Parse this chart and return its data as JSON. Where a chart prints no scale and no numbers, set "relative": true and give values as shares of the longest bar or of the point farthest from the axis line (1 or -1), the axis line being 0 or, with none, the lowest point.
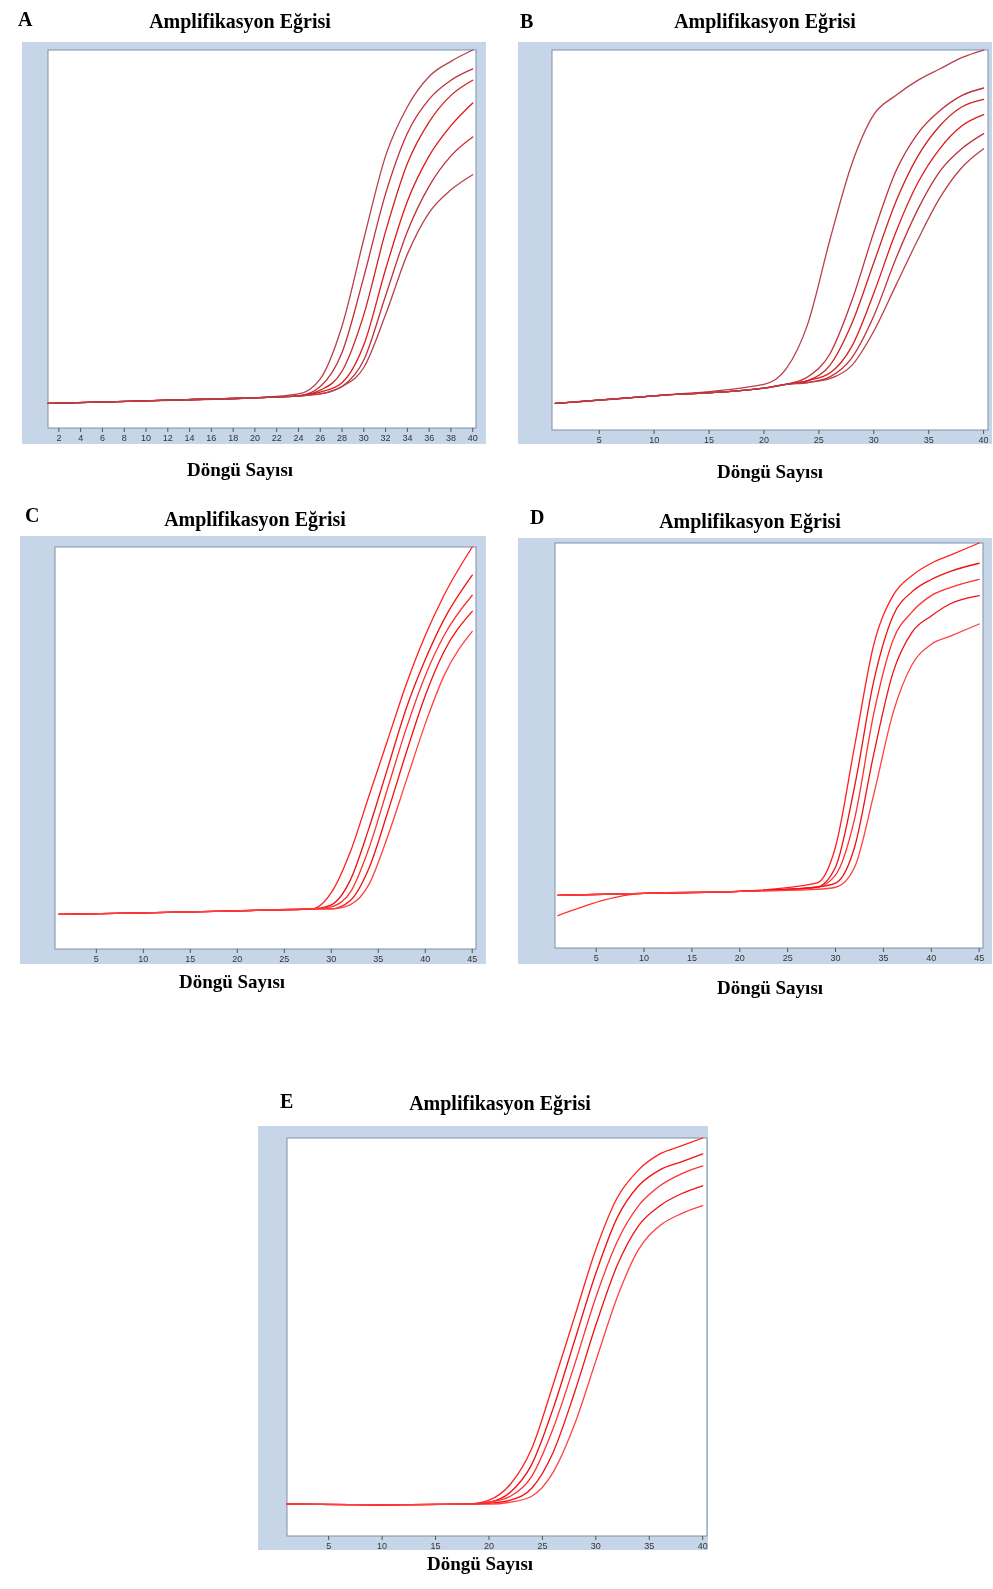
{
  "chart_data": [
    {
      "type": "line",
      "title": "Amplifikasyon Eğrisi",
      "xlabel": "Döngü Sayısı",
      "annotations": [
        "A"
      ],
      "relative": true,
      "xlim": [
        1,
        40.3
      ],
      "xticks": [
        2,
        4,
        6,
        8,
        10,
        12,
        14,
        16,
        18,
        20,
        22,
        24,
        26,
        28,
        30,
        32,
        34,
        36,
        38,
        40
      ],
      "grid": false,
      "x": [
        1,
        10,
        20,
        24,
        26,
        28,
        30,
        32,
        34,
        36,
        38,
        40
      ],
      "series": [
        {
          "color": "#b8404a",
          "values": [
            0.065,
            0.072,
            0.08,
            0.09,
            0.13,
            0.27,
            0.5,
            0.72,
            0.85,
            0.93,
            0.97,
            1.0
          ]
        },
        {
          "color": "#c0303a",
          "values": [
            0.065,
            0.072,
            0.08,
            0.085,
            0.11,
            0.2,
            0.4,
            0.62,
            0.78,
            0.87,
            0.92,
            0.95
          ]
        },
        {
          "color": "#d02020",
          "values": [
            0.065,
            0.072,
            0.08,
            0.085,
            0.1,
            0.15,
            0.3,
            0.52,
            0.7,
            0.81,
            0.88,
            0.92
          ]
        },
        {
          "color": "#e01818",
          "values": [
            0.065,
            0.072,
            0.08,
            0.085,
            0.095,
            0.12,
            0.22,
            0.42,
            0.6,
            0.72,
            0.8,
            0.86
          ]
        },
        {
          "color": "#c0303a",
          "values": [
            0.065,
            0.072,
            0.08,
            0.085,
            0.09,
            0.11,
            0.18,
            0.35,
            0.52,
            0.64,
            0.72,
            0.77
          ]
        },
        {
          "color": "#b8404a",
          "values": [
            0.065,
            0.072,
            0.08,
            0.085,
            0.09,
            0.11,
            0.16,
            0.3,
            0.46,
            0.57,
            0.63,
            0.67
          ]
        }
      ]
    },
    {
      "type": "line",
      "title": "Amplifikasyon Eğrisi",
      "xlabel": "Döngü Sayısı",
      "annotations": [
        "B"
      ],
      "relative": true,
      "xlim": [
        0.7,
        40.4
      ],
      "xticks": [
        5,
        10,
        15,
        20,
        25,
        30,
        35,
        40
      ],
      "grid": false,
      "x": [
        1,
        10,
        20,
        22,
        24,
        26,
        28,
        30,
        32,
        34,
        36,
        38,
        40
      ],
      "series": [
        {
          "color": "#b8404a",
          "values": [
            0.07,
            0.09,
            0.12,
            0.16,
            0.28,
            0.5,
            0.7,
            0.83,
            0.88,
            0.92,
            0.95,
            0.98,
            1.0
          ]
        },
        {
          "color": "#c0303a",
          "values": [
            0.07,
            0.09,
            0.11,
            0.12,
            0.14,
            0.2,
            0.34,
            0.52,
            0.68,
            0.78,
            0.84,
            0.88,
            0.9
          ]
        },
        {
          "color": "#d02020",
          "values": [
            0.07,
            0.09,
            0.11,
            0.12,
            0.13,
            0.17,
            0.28,
            0.44,
            0.6,
            0.72,
            0.8,
            0.85,
            0.87
          ]
        },
        {
          "color": "#e01818",
          "values": [
            0.07,
            0.09,
            0.11,
            0.12,
            0.13,
            0.15,
            0.22,
            0.36,
            0.52,
            0.65,
            0.74,
            0.8,
            0.83
          ]
        },
        {
          "color": "#c0303a",
          "values": [
            0.07,
            0.09,
            0.11,
            0.12,
            0.125,
            0.14,
            0.19,
            0.3,
            0.45,
            0.58,
            0.68,
            0.74,
            0.78
          ]
        },
        {
          "color": "#b8404a",
          "values": [
            0.07,
            0.09,
            0.11,
            0.12,
            0.125,
            0.135,
            0.17,
            0.26,
            0.38,
            0.5,
            0.61,
            0.69,
            0.74
          ]
        }
      ]
    },
    {
      "type": "line",
      "title": "Amplifikasyon Eğrisi",
      "xlabel": "Döngü Sayısı",
      "annotations": [
        "C"
      ],
      "relative": true,
      "xlim": [
        0.6,
        45.4
      ],
      "xticks": [
        5,
        10,
        15,
        20,
        25,
        30,
        35,
        40,
        45
      ],
      "grid": false,
      "x": [
        1,
        10,
        20,
        28,
        30,
        32,
        34,
        36,
        38,
        40,
        42,
        45
      ],
      "series": [
        {
          "color": "#ff2020",
          "values": [
            0.086,
            0.09,
            0.095,
            0.1,
            0.14,
            0.24,
            0.38,
            0.52,
            0.66,
            0.78,
            0.88,
            1.0
          ]
        },
        {
          "color": "#f01010",
          "values": [
            0.086,
            0.09,
            0.095,
            0.1,
            0.11,
            0.17,
            0.3,
            0.45,
            0.6,
            0.72,
            0.82,
            0.93
          ]
        },
        {
          "color": "#ff3030",
          "values": [
            0.086,
            0.09,
            0.095,
            0.1,
            0.105,
            0.14,
            0.25,
            0.4,
            0.55,
            0.68,
            0.78,
            0.88
          ]
        },
        {
          "color": "#f01010",
          "values": [
            0.086,
            0.09,
            0.095,
            0.1,
            0.1,
            0.12,
            0.2,
            0.34,
            0.49,
            0.63,
            0.74,
            0.84
          ]
        },
        {
          "color": "#ff4040",
          "values": [
            0.086,
            0.09,
            0.095,
            0.1,
            0.1,
            0.11,
            0.16,
            0.28,
            0.42,
            0.56,
            0.68,
            0.79
          ]
        }
      ]
    },
    {
      "type": "line",
      "title": "Amplifikasyon Eğrisi",
      "xlabel": "Döngü Sayısı",
      "annotations": [
        "D"
      ],
      "relative": true,
      "xlim": [
        0.7,
        45.4
      ],
      "xticks": [
        5,
        10,
        15,
        20,
        25,
        30,
        35,
        40,
        45
      ],
      "grid": false,
      "x": [
        1,
        10,
        20,
        28,
        30,
        32,
        34,
        36,
        38,
        40,
        42,
        45
      ],
      "series": [
        {
          "color": "#ff2020",
          "values": [
            0.13,
            0.135,
            0.14,
            0.16,
            0.25,
            0.5,
            0.75,
            0.87,
            0.92,
            0.95,
            0.97,
            1.0
          ]
        },
        {
          "color": "#f01010",
          "values": [
            0.13,
            0.135,
            0.14,
            0.15,
            0.2,
            0.4,
            0.66,
            0.82,
            0.88,
            0.91,
            0.93,
            0.95
          ]
        },
        {
          "color": "#ff3030",
          "values": [
            0.08,
            0.135,
            0.14,
            0.15,
            0.18,
            0.32,
            0.58,
            0.76,
            0.83,
            0.87,
            0.89,
            0.91
          ]
        },
        {
          "color": "#f01010",
          "values": [
            0.13,
            0.135,
            0.14,
            0.15,
            0.16,
            0.25,
            0.48,
            0.68,
            0.78,
            0.82,
            0.85,
            0.87
          ]
        },
        {
          "color": "#ff4040",
          "values": [
            0.13,
            0.135,
            0.14,
            0.145,
            0.15,
            0.2,
            0.38,
            0.58,
            0.7,
            0.75,
            0.77,
            0.8
          ]
        }
      ]
    },
    {
      "type": "line",
      "title": "Amplifikasyon Eğrisi",
      "xlabel": "Döngü Sayısı",
      "annotations": [
        "E"
      ],
      "relative": true,
      "xlim": [
        1.1,
        40.4
      ],
      "xticks": [
        5,
        10,
        15,
        20,
        25,
        30,
        35,
        40
      ],
      "grid": false,
      "x": [
        1.1,
        10,
        18,
        20,
        22,
        24,
        26,
        28,
        30,
        32,
        34,
        36,
        38,
        40
      ],
      "series": [
        {
          "color": "#ff2020",
          "values": [
            0.08,
            0.078,
            0.08,
            0.09,
            0.13,
            0.22,
            0.38,
            0.55,
            0.72,
            0.85,
            0.92,
            0.96,
            0.98,
            1.0
          ]
        },
        {
          "color": "#f01010",
          "values": [
            0.08,
            0.078,
            0.08,
            0.085,
            0.11,
            0.18,
            0.32,
            0.49,
            0.66,
            0.8,
            0.88,
            0.92,
            0.94,
            0.96
          ]
        },
        {
          "color": "#ff3030",
          "values": [
            0.08,
            0.078,
            0.08,
            0.085,
            0.1,
            0.15,
            0.27,
            0.43,
            0.6,
            0.74,
            0.83,
            0.88,
            0.91,
            0.93
          ]
        },
        {
          "color": "#f01010",
          "values": [
            0.08,
            0.078,
            0.08,
            0.082,
            0.09,
            0.12,
            0.21,
            0.36,
            0.53,
            0.68,
            0.78,
            0.83,
            0.86,
            0.88
          ]
        },
        {
          "color": "#ff4040",
          "values": [
            0.08,
            0.078,
            0.08,
            0.08,
            0.085,
            0.1,
            0.16,
            0.28,
            0.44,
            0.6,
            0.72,
            0.78,
            0.81,
            0.83
          ]
        }
      ]
    }
  ]
}
